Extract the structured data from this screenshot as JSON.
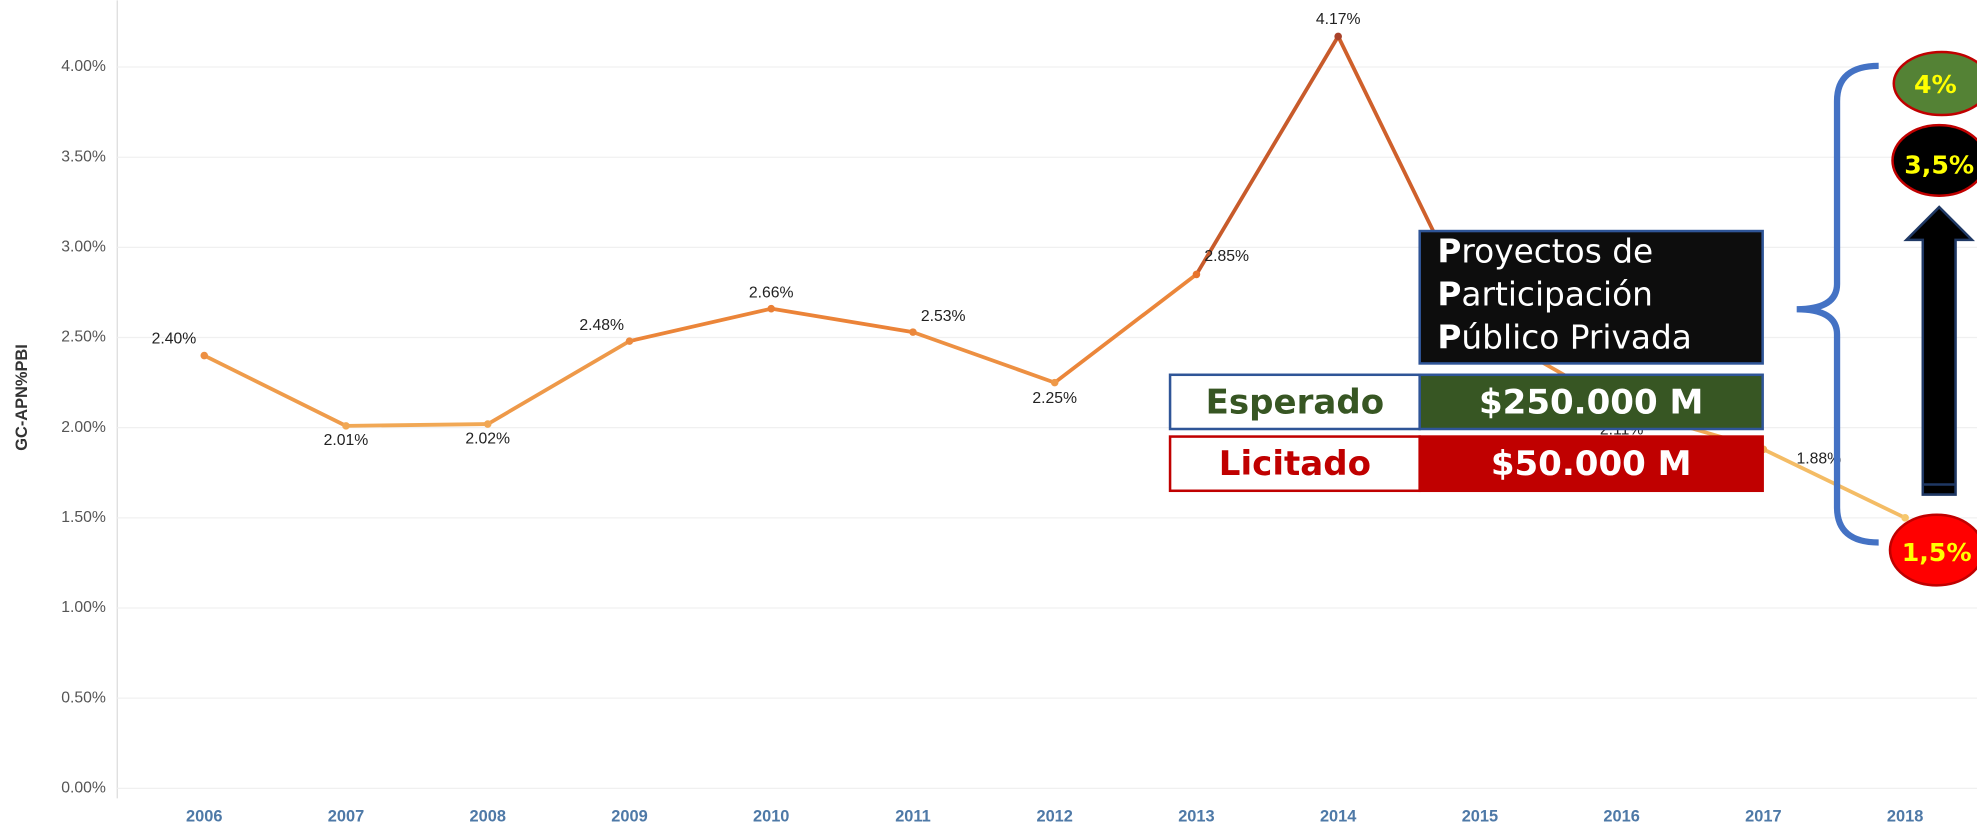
{
  "chart_data": {
    "type": "line",
    "y_label": "GC-APN%PBI",
    "categories": [
      "2006",
      "2007",
      "2008",
      "2009",
      "2010",
      "2011",
      "2012",
      "2013",
      "2014",
      "2015",
      "2016",
      "2017",
      "2018"
    ],
    "values": [
      2.4,
      2.01,
      2.02,
      2.48,
      2.66,
      2.53,
      2.25,
      2.85,
      4.17,
      2.56,
      2.11,
      1.88,
      1.5
    ],
    "value_labels": [
      "2.40%",
      "2.01%",
      "2.02%",
      "2.48%",
      "2.66%",
      "2.53%",
      "2.25%",
      "2.85%",
      "4.17%",
      null,
      "2.11%",
      "1.88%",
      null
    ],
    "color_scale": [
      "#f6c86e",
      "#e8742c",
      "#a9422a"
    ],
    "ylim": [
      -0.056,
      4.37
    ],
    "yticks": [
      {
        "value": 0,
        "label": "0.00%"
      },
      {
        "value": 0.5,
        "label": "0.50%"
      },
      {
        "value": 1,
        "label": "1.00%"
      },
      {
        "value": 1.5,
        "label": "1.50%"
      },
      {
        "value": 2,
        "label": "2.00%"
      },
      {
        "value": 2.5,
        "label": "2.50%"
      },
      {
        "value": 3,
        "label": "3.00%"
      },
      {
        "value": 3.5,
        "label": "3.50%"
      },
      {
        "value": 4,
        "label": "4.00%"
      }
    ],
    "grid": true
  },
  "overlay": {
    "title_lines": [
      "Proyectos de",
      "Participación",
      "Público Privada"
    ],
    "rows": [
      [
        "Esperado",
        "$250.000 M"
      ],
      [
        "Licitado",
        "$50.000 M"
      ]
    ],
    "ovals": [
      "4%",
      "3,5%",
      "1,5%"
    ]
  }
}
